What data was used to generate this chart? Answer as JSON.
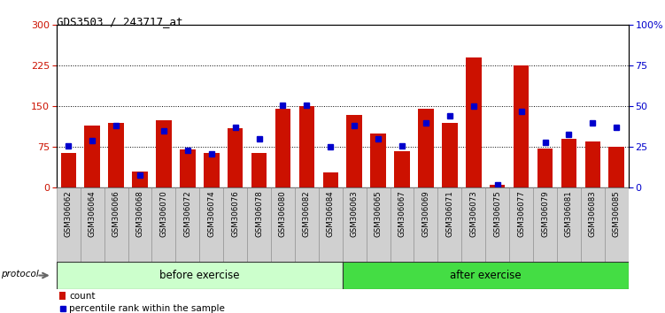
{
  "title": "GDS3503 / 243717_at",
  "categories": [
    "GSM306062",
    "GSM306064",
    "GSM306066",
    "GSM306068",
    "GSM306070",
    "GSM306072",
    "GSM306074",
    "GSM306076",
    "GSM306078",
    "GSM306080",
    "GSM306082",
    "GSM306084",
    "GSM306063",
    "GSM306065",
    "GSM306067",
    "GSM306069",
    "GSM306071",
    "GSM306073",
    "GSM306075",
    "GSM306077",
    "GSM306079",
    "GSM306081",
    "GSM306083",
    "GSM306085"
  ],
  "count_values": [
    65,
    115,
    120,
    30,
    125,
    70,
    65,
    110,
    65,
    145,
    150,
    28,
    135,
    100,
    68,
    145,
    120,
    240,
    5,
    225,
    72,
    90,
    85,
    75
  ],
  "percentile_values": [
    26,
    29,
    38,
    8,
    35,
    23,
    21,
    37,
    30,
    51,
    51,
    25,
    38,
    30,
    26,
    40,
    44,
    50,
    2,
    47,
    28,
    33,
    40,
    37
  ],
  "before_exercise_count": 12,
  "after_exercise_count": 12,
  "bar_color": "#CC1100",
  "dot_color": "#0000CC",
  "before_bg": "#CCFFCC",
  "after_bg": "#44DD44",
  "ylim_left": [
    0,
    300
  ],
  "ylim_right": [
    0,
    100
  ],
  "yticks_left": [
    0,
    75,
    150,
    225,
    300
  ],
  "yticks_right": [
    0,
    25,
    50,
    75,
    100
  ],
  "grid_lines": [
    75,
    150,
    225
  ],
  "legend_count_label": "count",
  "legend_pct_label": "percentile rank within the sample",
  "protocol_label": "protocol",
  "before_label": "before exercise",
  "after_label": "after exercise"
}
